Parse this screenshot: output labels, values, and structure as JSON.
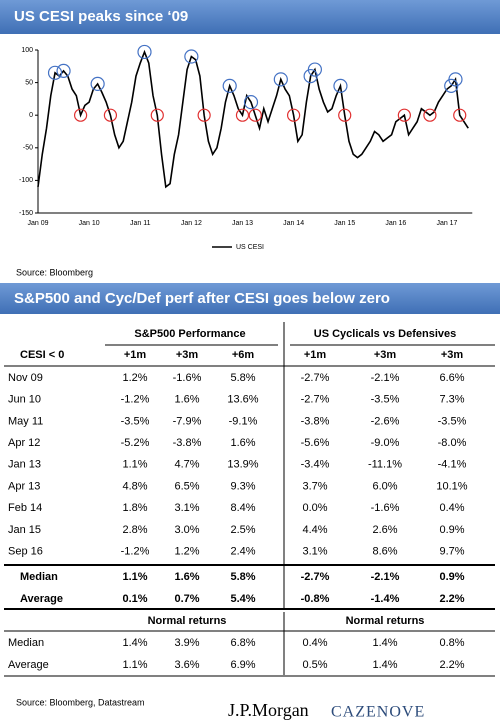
{
  "header": {
    "title": "US CESI peaks since ‘09"
  },
  "chart_data": {
    "type": "line",
    "categories": [
      "Jan 09",
      null,
      null,
      null,
      null,
      null,
      null,
      null,
      null,
      null,
      null,
      null,
      "Jan 10",
      null,
      null,
      null,
      null,
      null,
      null,
      null,
      null,
      null,
      null,
      null,
      "Jan 11",
      null,
      null,
      null,
      null,
      null,
      null,
      null,
      null,
      null,
      null,
      null,
      "Jan 12",
      null,
      null,
      null,
      null,
      null,
      null,
      null,
      null,
      null,
      null,
      null,
      "Jan 13",
      null,
      null,
      null,
      null,
      null,
      null,
      null,
      null,
      null,
      null,
      null,
      "Jan 14",
      null,
      null,
      null,
      null,
      null,
      null,
      null,
      null,
      null,
      null,
      null,
      "Jan 15",
      null,
      null,
      null,
      null,
      null,
      null,
      null,
      null,
      null,
      null,
      null,
      "Jan 16",
      null,
      null,
      null,
      null,
      null,
      null,
      null,
      null,
      null,
      null,
      null,
      "Jan 17",
      null,
      null,
      null,
      null,
      null
    ],
    "series": [
      {
        "name": "US CESI",
        "color": "#000000",
        "values": [
          -110,
          -60,
          -20,
          30,
          65,
          60,
          68,
          60,
          40,
          30,
          0,
          15,
          20,
          40,
          48,
          35,
          20,
          0,
          -30,
          -50,
          -40,
          -10,
          20,
          60,
          80,
          97,
          80,
          30,
          0,
          -60,
          -110,
          -105,
          -60,
          -30,
          20,
          70,
          90,
          85,
          60,
          0,
          -40,
          -60,
          -50,
          -20,
          20,
          45,
          30,
          10,
          0,
          30,
          20,
          0,
          -20,
          10,
          -10,
          10,
          30,
          55,
          40,
          30,
          0,
          -40,
          -30,
          20,
          60,
          70,
          40,
          20,
          5,
          10,
          30,
          45,
          0,
          -40,
          -60,
          -65,
          -60,
          -50,
          -40,
          -25,
          -30,
          -40,
          -35,
          -30,
          -10,
          -5,
          0,
          -30,
          -20,
          -10,
          10,
          5,
          0,
          5,
          20,
          30,
          40,
          45,
          55,
          0,
          -10,
          -20
        ]
      }
    ],
    "peaks": {
      "color": "#4472c4",
      "points": [
        4,
        6,
        14,
        25,
        36,
        45,
        50,
        57,
        64,
        65,
        71,
        97,
        98
      ]
    },
    "below_zero": {
      "color": "#e03030",
      "points": [
        10,
        17,
        28,
        39,
        48,
        51,
        60,
        72,
        86,
        92,
        99
      ]
    },
    "ylim": [
      -150,
      100
    ],
    "yticks": [
      -150,
      -100,
      -50,
      0,
      50,
      100
    ]
  },
  "source1": "Source: Bloomberg",
  "header2": {
    "title": "S&P500 and Cyc/Def perf after CESI goes below zero"
  },
  "table": {
    "group_headers": [
      "S&P500 Performance",
      "US Cyclicals vs Defensives"
    ],
    "columns": [
      "CESI < 0",
      "+1m",
      "+3m",
      "+6m",
      "+1m",
      "+3m",
      "+3m"
    ],
    "rows": [
      [
        "Nov 09",
        "1.2%",
        "-1.6%",
        "5.8%",
        "-2.7%",
        "-2.1%",
        "6.6%"
      ],
      [
        "Jun 10",
        "-1.2%",
        "1.6%",
        "13.6%",
        "-2.7%",
        "-3.5%",
        "7.3%"
      ],
      [
        "May 11",
        "-3.5%",
        "-7.9%",
        "-9.1%",
        "-3.8%",
        "-2.6%",
        "-3.5%"
      ],
      [
        "Apr 12",
        "-5.2%",
        "-3.8%",
        "1.6%",
        "-5.6%",
        "-9.0%",
        "-8.0%"
      ],
      [
        "Jan 13",
        "1.1%",
        "4.7%",
        "13.9%",
        "-3.4%",
        "-11.1%",
        "-4.1%"
      ],
      [
        "Apr 13",
        "4.8%",
        "6.5%",
        "9.3%",
        "3.7%",
        "6.0%",
        "10.1%"
      ],
      [
        "Feb 14",
        "1.8%",
        "3.1%",
        "8.4%",
        "0.0%",
        "-1.6%",
        "0.4%"
      ],
      [
        "Jan 15",
        "2.8%",
        "3.0%",
        "2.5%",
        "4.4%",
        "2.6%",
        "0.9%"
      ],
      [
        "Sep 16",
        "-1.2%",
        "1.2%",
        "2.4%",
        "3.1%",
        "8.6%",
        "9.7%"
      ]
    ],
    "summary": [
      [
        "Median",
        "1.1%",
        "1.6%",
        "5.8%",
        "-2.7%",
        "-2.1%",
        "0.9%"
      ],
      [
        "Average",
        "0.1%",
        "0.7%",
        "5.4%",
        "-0.8%",
        "-1.4%",
        "2.2%"
      ]
    ],
    "normal_headers": [
      "Normal returns",
      "Normal returns"
    ],
    "normal_rows": [
      [
        "Median",
        "1.4%",
        "3.9%",
        "6.8%",
        "0.4%",
        "1.4%",
        "0.8%"
      ],
      [
        "Average",
        "1.1%",
        "3.6%",
        "6.9%",
        "0.5%",
        "1.4%",
        "2.2%"
      ]
    ]
  },
  "footer": {
    "source": "Source: Bloomberg, Datastream",
    "brand": "J.P.Morgan",
    "brand2": "CAZENOVE"
  }
}
